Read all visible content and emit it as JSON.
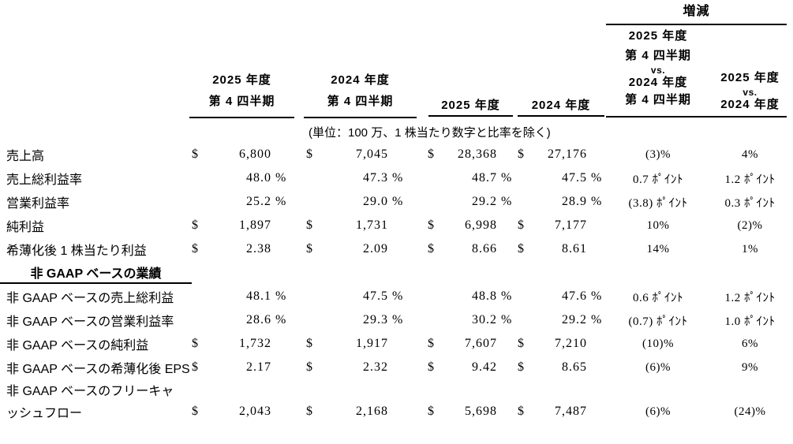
{
  "colors": {
    "text": "#000000",
    "background": "#ffffff",
    "rule": "#000000"
  },
  "header": {
    "change_label": "増減",
    "cols": [
      {
        "lines": [
          "2025 年度",
          "第 4 四半期"
        ]
      },
      {
        "lines": [
          "2024 年度",
          "第 4 四半期"
        ]
      },
      {
        "lines": [
          "2025 年度"
        ]
      },
      {
        "lines": [
          "2024 年度"
        ]
      },
      {
        "lines": [
          "2025 年度",
          "第 4 四半期",
          "vs.",
          "2024 年度",
          "第 4 四半期"
        ]
      },
      {
        "lines": [
          "2025 年度",
          "vs.",
          "2024 年度"
        ]
      }
    ],
    "units_note": "(単位：100 万、1 株当たり数字と比率を除く)"
  },
  "table": {
    "section_header": "非 GAAP ベースの業績",
    "rows": [
      {
        "label": "売上高",
        "cells": [
          {
            "cur": "$",
            "val": "6,800",
            "pct": ""
          },
          {
            "cur": "$",
            "val": "7,045",
            "pct": ""
          },
          {
            "cur": "$",
            "val": "28,368",
            "pct": ""
          },
          {
            "cur": "$",
            "val": "27,176",
            "pct": ""
          }
        ],
        "chg": [
          "(3)%",
          "4%"
        ]
      },
      {
        "label": "売上総利益率",
        "cells": [
          {
            "cur": "",
            "val": "48.0",
            "pct": "%"
          },
          {
            "cur": "",
            "val": "47.3",
            "pct": "%"
          },
          {
            "cur": "",
            "val": "48.7",
            "pct": "%"
          },
          {
            "cur": "",
            "val": "47.5",
            "pct": "%"
          }
        ],
        "chg": [
          "0.7 ﾎﾟｲﾝﾄ",
          "1.2 ﾎﾟｲﾝﾄ"
        ]
      },
      {
        "label": "営業利益率",
        "cells": [
          {
            "cur": "",
            "val": "25.2",
            "pct": "%"
          },
          {
            "cur": "",
            "val": "29.0",
            "pct": "%"
          },
          {
            "cur": "",
            "val": "29.2",
            "pct": "%"
          },
          {
            "cur": "",
            "val": "28.9",
            "pct": "%"
          }
        ],
        "chg": [
          "(3.8) ﾎﾟｲﾝﾄ",
          "0.3 ﾎﾟｲﾝﾄ"
        ]
      },
      {
        "label": "純利益",
        "cells": [
          {
            "cur": "$",
            "val": "1,897",
            "pct": ""
          },
          {
            "cur": "$",
            "val": "1,731",
            "pct": ""
          },
          {
            "cur": "$",
            "val": "6,998",
            "pct": ""
          },
          {
            "cur": "$",
            "val": "7,177",
            "pct": ""
          }
        ],
        "chg": [
          "10%",
          "(2)%"
        ]
      },
      {
        "label": "希薄化後 1 株当たり利益",
        "cells": [
          {
            "cur": "$",
            "val": "2.38",
            "pct": ""
          },
          {
            "cur": "$",
            "val": "2.09",
            "pct": ""
          },
          {
            "cur": "$",
            "val": "8.66",
            "pct": ""
          },
          {
            "cur": "$",
            "val": "8.61",
            "pct": ""
          }
        ],
        "chg": [
          "14%",
          "1%"
        ]
      },
      {
        "label": "非 GAAP ベースの売上総利益",
        "cells": [
          {
            "cur": "",
            "val": "48.1",
            "pct": "%"
          },
          {
            "cur": "",
            "val": "47.5",
            "pct": "%"
          },
          {
            "cur": "",
            "val": "48.8",
            "pct": "%"
          },
          {
            "cur": "",
            "val": "47.6",
            "pct": "%"
          }
        ],
        "chg": [
          "0.6 ﾎﾟｲﾝﾄ",
          "1.2 ﾎﾟｲﾝﾄ"
        ]
      },
      {
        "label": "非 GAAP ベースの営業利益率",
        "cells": [
          {
            "cur": "",
            "val": "28.6",
            "pct": "%"
          },
          {
            "cur": "",
            "val": "29.3",
            "pct": "%"
          },
          {
            "cur": "",
            "val": "30.2",
            "pct": "%"
          },
          {
            "cur": "",
            "val": "29.2",
            "pct": "%"
          }
        ],
        "chg": [
          "(0.7) ﾎﾟｲﾝﾄ",
          "1.0 ﾎﾟｲﾝﾄ"
        ]
      },
      {
        "label": "非 GAAP ベースの純利益",
        "cells": [
          {
            "cur": "$",
            "val": "1,732",
            "pct": ""
          },
          {
            "cur": "$",
            "val": "1,917",
            "pct": ""
          },
          {
            "cur": "$",
            "val": "7,607",
            "pct": ""
          },
          {
            "cur": "$",
            "val": "7,210",
            "pct": ""
          }
        ],
        "chg": [
          "(10)%",
          "6%"
        ]
      },
      {
        "label": "非 GAAP ベースの希薄化後 EPS",
        "cells": [
          {
            "cur": "$",
            "val": "2.17",
            "pct": ""
          },
          {
            "cur": "$",
            "val": "2.32",
            "pct": ""
          },
          {
            "cur": "$",
            "val": "9.42",
            "pct": ""
          },
          {
            "cur": "$",
            "val": "8.65",
            "pct": ""
          }
        ],
        "chg": [
          "(6)%",
          "9%"
        ]
      },
      {
        "label": "非 GAAP ベースのフリーキャ",
        "cells": [
          {
            "cur": "",
            "val": "",
            "pct": ""
          },
          {
            "cur": "",
            "val": "",
            "pct": ""
          },
          {
            "cur": "",
            "val": "",
            "pct": ""
          },
          {
            "cur": "",
            "val": "",
            "pct": ""
          }
        ],
        "chg": [
          "",
          ""
        ]
      },
      {
        "label": "ッシュフロー",
        "cells": [
          {
            "cur": "$",
            "val": "2,043",
            "pct": ""
          },
          {
            "cur": "$",
            "val": "2,168",
            "pct": ""
          },
          {
            "cur": "$",
            "val": "5,698",
            "pct": ""
          },
          {
            "cur": "$",
            "val": "7,487",
            "pct": ""
          }
        ],
        "chg": [
          "(6)%",
          "(24)%"
        ]
      }
    ]
  }
}
